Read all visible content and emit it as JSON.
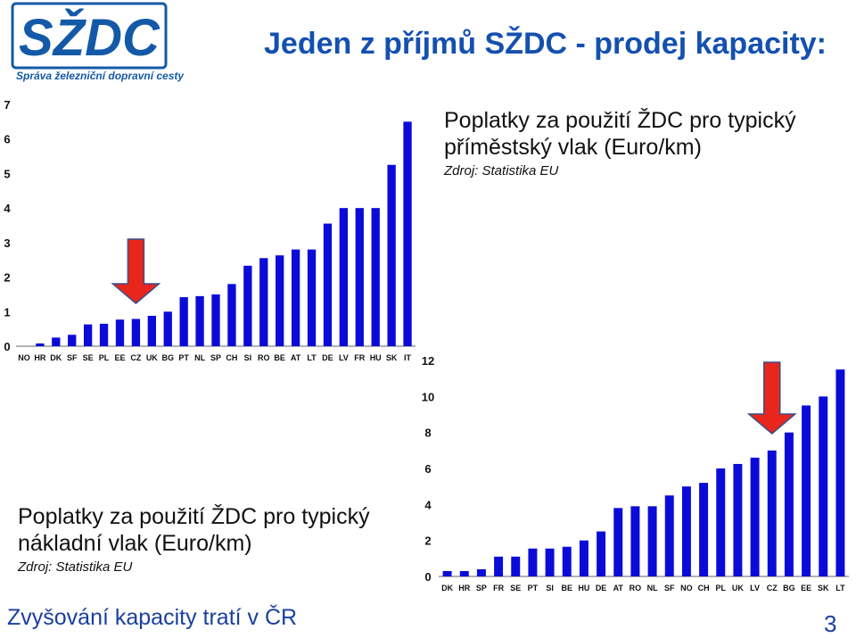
{
  "slide": {
    "title": "Jeden z příjmů SŽDC - prodej kapacity:",
    "logo_text": "Správa železniční dopravní cesty",
    "logo_mark": "SŽDC",
    "footer": "Zvyšování kapacity tratí v ČR",
    "page_number": "3"
  },
  "captions": [
    {
      "line1": "Poplatky za použití ŽDC pro typický",
      "line2": "příměstský vlak (Euro/km)",
      "source": "Zdroj: Statistika EU"
    },
    {
      "line1": "Poplatky za použití ŽDC pro typický",
      "line2": "nákladní vlak (Euro/km)",
      "source": "Zdroj: Statistika EU"
    }
  ],
  "colors": {
    "bar": "#0b0bd8",
    "arrow": "#e8261c",
    "arrow_outline": "#3a4f8a",
    "title": "#1450b0",
    "footer": "#1a3f9e"
  },
  "chart_data": [
    {
      "type": "bar",
      "title": "Poplatky za použití ŽDC pro typický příměstský vlak (Euro/km)",
      "categories": [
        "NO",
        "HR",
        "DK",
        "SF",
        "SE",
        "PL",
        "EE",
        "CZ",
        "UK",
        "BG",
        "PT",
        "NL",
        "SP",
        "CH",
        "SI",
        "RO",
        "BE",
        "AT",
        "LT",
        "DE",
        "LV",
        "FR",
        "HU",
        "SK",
        "IT"
      ],
      "values": [
        0,
        0.08,
        0.25,
        0.33,
        0.63,
        0.65,
        0.77,
        0.79,
        0.88,
        1.0,
        1.42,
        1.45,
        1.5,
        1.8,
        2.33,
        2.55,
        2.63,
        2.8,
        2.8,
        3.55,
        4.0,
        4.0,
        4.0,
        5.25,
        6.5
      ],
      "yticks": [
        0,
        1,
        2,
        3,
        4,
        5,
        6,
        7
      ],
      "ylim": [
        0,
        7
      ],
      "highlight": "CZ",
      "grid": false
    },
    {
      "type": "bar",
      "title": "Poplatky za použití ŽDC pro typický nákladní vlak (Euro/km)",
      "categories": [
        "DK",
        "HR",
        "SP",
        "FR",
        "SE",
        "PT",
        "SI",
        "BE",
        "HU",
        "DE",
        "AT",
        "RO",
        "NL",
        "SF",
        "NO",
        "CH",
        "PL",
        "UK",
        "LV",
        "CZ",
        "BG",
        "EE",
        "SK",
        "LT"
      ],
      "values": [
        0.3,
        0.3,
        0.4,
        1.1,
        1.1,
        1.55,
        1.55,
        1.65,
        2.0,
        2.5,
        3.8,
        3.9,
        3.9,
        4.5,
        5.0,
        5.2,
        6.0,
        6.25,
        6.6,
        7.0,
        8.0,
        9.5,
        10.0,
        11.5
      ],
      "yticks": [
        0,
        2,
        4,
        6,
        8,
        10,
        12
      ],
      "ylim": [
        0,
        12
      ],
      "highlight": "CZ",
      "grid": false
    }
  ]
}
